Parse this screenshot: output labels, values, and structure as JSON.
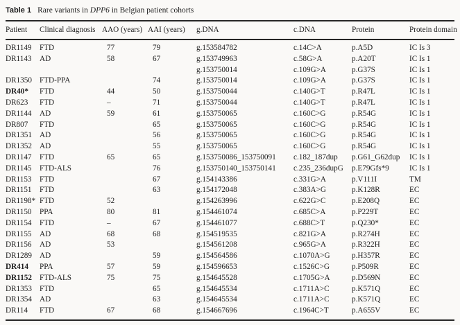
{
  "caption": {
    "label": "Table 1",
    "text_before_gene": "Rare variants in ",
    "gene": "DPP6",
    "text_after_gene": " in Belgian patient cohorts"
  },
  "table": {
    "columns": [
      {
        "key": "patient",
        "label": "Patient"
      },
      {
        "key": "diagnosis",
        "label": "Clinical diagnosis"
      },
      {
        "key": "aao",
        "label": "AAO (years)"
      },
      {
        "key": "aai",
        "label": "AAI (years)"
      },
      {
        "key": "gdna",
        "label": "g.DNA"
      },
      {
        "key": "cdna",
        "label": "c.DNA"
      },
      {
        "key": "protein",
        "label": "Protein"
      },
      {
        "key": "domain",
        "label": "Protein domain"
      }
    ],
    "rows": [
      {
        "patient": "DR1149",
        "bold": false,
        "diagnosis": "FTD",
        "aao": "77",
        "aai": "79",
        "gdna": "g.153584782",
        "cdna": "c.14C>A",
        "protein": "p.A5D",
        "domain": "IC Is 3"
      },
      {
        "patient": "DR1143",
        "bold": false,
        "diagnosis": "AD",
        "aao": "58",
        "aai": "67",
        "gdna": "g.153749963",
        "cdna": "c.58G>A",
        "protein": "p.A20T",
        "domain": "IC Is 1"
      },
      {
        "patient": "",
        "bold": false,
        "diagnosis": "",
        "aao": "",
        "aai": "",
        "gdna": "g.153750014",
        "cdna": "c.109G>A",
        "protein": "p.G37S",
        "domain": "IC Is 1"
      },
      {
        "patient": "DR1350",
        "bold": false,
        "diagnosis": "FTD-PPA",
        "aao": "",
        "aai": "74",
        "gdna": "g.153750014",
        "cdna": "c.109G>A",
        "protein": "p.G37S",
        "domain": "IC Is 1"
      },
      {
        "patient": "DR40*",
        "bold": true,
        "diagnosis": "FTD",
        "aao": "44",
        "aai": "50",
        "gdna": "g.153750044",
        "cdna": "c.140G>T",
        "protein": "p.R47L",
        "domain": "IC Is 1"
      },
      {
        "patient": "DR623",
        "bold": false,
        "diagnosis": "FTD",
        "aao": "–",
        "aai": "71",
        "gdna": "g.153750044",
        "cdna": "c.140G>T",
        "protein": "p.R47L",
        "domain": "IC Is 1"
      },
      {
        "patient": "DR1144",
        "bold": false,
        "diagnosis": "AD",
        "aao": "59",
        "aai": "61",
        "gdna": "g.153750065",
        "cdna": "c.160C>G",
        "protein": "p.R54G",
        "domain": "IC Is 1"
      },
      {
        "patient": "DR807",
        "bold": false,
        "diagnosis": "FTD",
        "aao": "",
        "aai": "65",
        "gdna": "g.153750065",
        "cdna": "c.160C>G",
        "protein": "p.R54G",
        "domain": "IC Is 1"
      },
      {
        "patient": "DR1351",
        "bold": false,
        "diagnosis": "AD",
        "aao": "",
        "aai": "56",
        "gdna": "g.153750065",
        "cdna": "c.160C>G",
        "protein": "p.R54G",
        "domain": "IC Is 1"
      },
      {
        "patient": "DR1352",
        "bold": false,
        "diagnosis": "AD",
        "aao": "",
        "aai": "55",
        "gdna": "g.153750065",
        "cdna": "c.160C>G",
        "protein": "p.R54G",
        "domain": "IC Is 1"
      },
      {
        "patient": "DR1147",
        "bold": false,
        "diagnosis": "FTD",
        "aao": "65",
        "aai": "65",
        "gdna": "g.153750086_153750091",
        "cdna": "c.182_187dup",
        "protein": "p.G61_G62dup",
        "domain": "IC Is 1"
      },
      {
        "patient": "DR1145",
        "bold": false,
        "diagnosis": "FTD-ALS",
        "aao": "",
        "aai": "76",
        "gdna": "g.153750140_153750141",
        "cdna": "c.235_236dupG",
        "protein": "p.E79Gfs*9",
        "domain": "IC Is 1"
      },
      {
        "patient": "DR1153",
        "bold": false,
        "diagnosis": "FTD",
        "aao": "",
        "aai": "67",
        "gdna": "g.154143386",
        "cdna": "c.331G>A",
        "protein": "p.V111I",
        "domain": "TM"
      },
      {
        "patient": "DR1151",
        "bold": false,
        "diagnosis": "FTD",
        "aao": "",
        "aai": "63",
        "gdna": "g.154172048",
        "cdna": "c.383A>G",
        "protein": "p.K128R",
        "domain": "EC"
      },
      {
        "patient": "DR1198*",
        "bold": false,
        "diagnosis": "FTD",
        "aao": "52",
        "aai": "",
        "gdna": "g.154263996",
        "cdna": "c.622G>C",
        "protein": "p.E208Q",
        "domain": "EC"
      },
      {
        "patient": "DR1150",
        "bold": false,
        "diagnosis": "PPA",
        "aao": "80",
        "aai": "81",
        "gdna": "g.154461074",
        "cdna": "c.685C>A",
        "protein": "p.P229T",
        "domain": "EC"
      },
      {
        "patient": "DR1154",
        "bold": false,
        "diagnosis": "FTD",
        "aao": "–",
        "aai": "67",
        "gdna": "g.154461077",
        "cdna": "c.688C>T",
        "protein": "p.Q230*",
        "domain": "EC"
      },
      {
        "patient": "DR1155",
        "bold": false,
        "diagnosis": "AD",
        "aao": "68",
        "aai": "68",
        "gdna": "g.154519535",
        "cdna": "c.821G>A",
        "protein": "p.R274H",
        "domain": "EC"
      },
      {
        "patient": "DR1156",
        "bold": false,
        "diagnosis": "AD",
        "aao": "53",
        "aai": "",
        "gdna": "g.154561208",
        "cdna": "c.965G>A",
        "protein": "p.R322H",
        "domain": "EC"
      },
      {
        "patient": "DR1289",
        "bold": false,
        "diagnosis": "AD",
        "aao": "",
        "aai": "59",
        "gdna": "g.154564586",
        "cdna": "c.1070A>G",
        "protein": "p.H357R",
        "domain": "EC"
      },
      {
        "patient": "DR414",
        "bold": true,
        "diagnosis": "PPA",
        "aao": "57",
        "aai": "59",
        "gdna": "g.154596653",
        "cdna": "c.1526C>G",
        "protein": "p.P509R",
        "domain": "EC"
      },
      {
        "patient": "DR1152",
        "bold": true,
        "diagnosis": "FTD-ALS",
        "aao": "75",
        "aai": "75",
        "gdna": "g.154645528",
        "cdna": "c.1705G>A",
        "protein": "p.D569N",
        "domain": "EC"
      },
      {
        "patient": "DR1353",
        "bold": false,
        "diagnosis": "FTD",
        "aao": "",
        "aai": "65",
        "gdna": "g.154645534",
        "cdna": "c.1711A>C",
        "protein": "p.K571Q",
        "domain": "EC"
      },
      {
        "patient": "DR1354",
        "bold": false,
        "diagnosis": "AD",
        "aao": "",
        "aai": "63",
        "gdna": "g.154645534",
        "cdna": "c.1711A>C",
        "protein": "p.K571Q",
        "domain": "EC"
      },
      {
        "patient": "DR114",
        "bold": false,
        "diagnosis": "FTD",
        "aao": "67",
        "aai": "68",
        "gdna": "g.154667696",
        "cdna": "c.1964C>T",
        "protein": "p.A655V",
        "domain": "EC"
      }
    ]
  }
}
